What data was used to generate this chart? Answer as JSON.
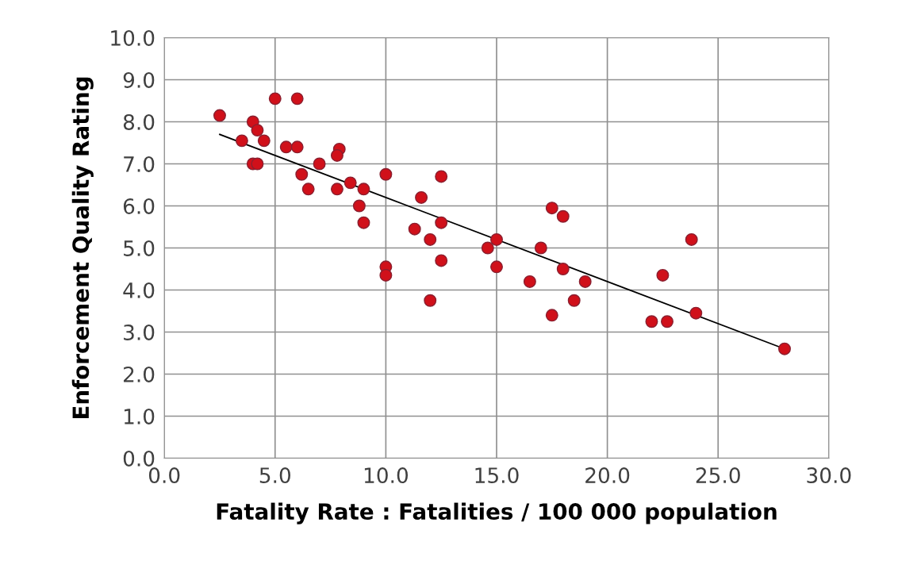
{
  "chart_data": {
    "type": "scatter",
    "xlabel": "Fatality Rate : Fatalities / 100 000 population",
    "ylabel": "Enforcement Quality Rating",
    "xlim": [
      0,
      30
    ],
    "ylim": [
      0,
      10
    ],
    "xticks": [
      {
        "value": 0,
        "label": "0.0"
      },
      {
        "value": 5,
        "label": "5.0"
      },
      {
        "value": 10,
        "label": "10.0"
      },
      {
        "value": 15,
        "label": "15.0"
      },
      {
        "value": 20,
        "label": "20.0"
      },
      {
        "value": 25,
        "label": "25.0"
      },
      {
        "value": 30,
        "label": "30.0"
      }
    ],
    "yticks": [
      {
        "value": 0,
        "label": "0.0"
      },
      {
        "value": 1,
        "label": "1.0"
      },
      {
        "value": 2,
        "label": "2.0"
      },
      {
        "value": 3,
        "label": "3.0"
      },
      {
        "value": 4,
        "label": "4.0"
      },
      {
        "value": 5,
        "label": "5.0"
      },
      {
        "value": 6,
        "label": "6.0"
      },
      {
        "value": 7,
        "label": "7.0"
      },
      {
        "value": 8,
        "label": "8.0"
      },
      {
        "value": 9,
        "label": "9.0"
      },
      {
        "value": 10,
        "label": "10.0"
      }
    ],
    "grid": true,
    "marker": "circle",
    "series": [
      {
        "color": "#d0101a",
        "x": [
          2.5,
          3.5,
          4.0,
          4.2,
          4.5,
          4.0,
          4.2,
          5.0,
          6.0,
          5.5,
          6.0,
          6.2,
          6.5,
          7.0,
          7.9,
          7.8,
          7.8,
          8.4,
          8.8,
          9.0,
          9.0,
          10.0,
          10.0,
          10.0,
          11.6,
          11.3,
          12.0,
          12.0,
          12.5,
          12.5,
          12.5,
          14.6,
          15.0,
          15.0,
          16.5,
          17.0,
          17.5,
          18.0,
          17.5,
          18.0,
          18.5,
          19.0,
          22.0,
          22.7,
          22.5,
          23.8,
          24.0,
          28.0
        ],
        "values": [
          8.15,
          7.55,
          8.0,
          7.8,
          7.55,
          7.0,
          7.0,
          8.55,
          8.55,
          7.4,
          7.4,
          6.75,
          6.4,
          7.0,
          7.35,
          7.2,
          6.4,
          6.55,
          6.0,
          6.4,
          5.6,
          6.75,
          4.55,
          4.35,
          6.2,
          5.45,
          5.2,
          3.75,
          6.7,
          5.6,
          4.7,
          5.0,
          5.2,
          4.55,
          4.2,
          5.0,
          5.95,
          5.75,
          3.4,
          4.5,
          3.75,
          4.2,
          3.25,
          3.25,
          4.35,
          5.2,
          3.45,
          2.6
        ]
      },
      {
        "type": "line",
        "color": "#000000",
        "marker": "none",
        "x": [
          2.5,
          28.0
        ],
        "values": [
          7.7,
          2.6
        ]
      }
    ]
  }
}
